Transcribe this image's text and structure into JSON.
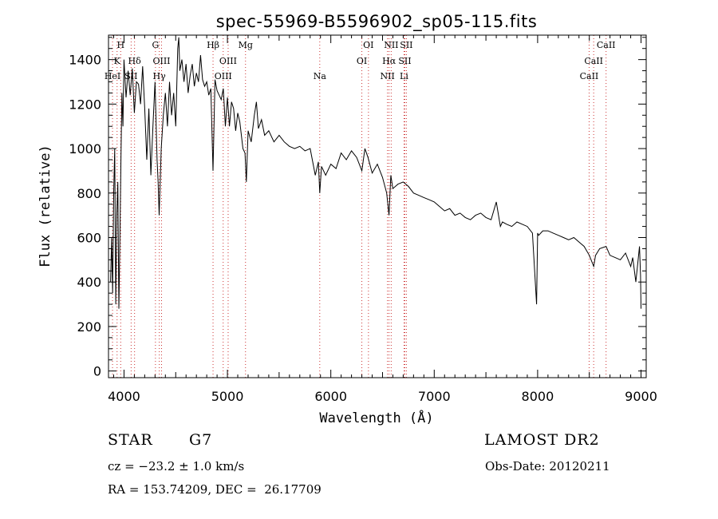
{
  "chart_data": {
    "type": "line",
    "title": "spec-55969-B5596902_sp05-115.fits",
    "xlabel": "Wavelength (Å)",
    "ylabel": "Flux (relative)",
    "xlim": [
      3850,
      9050
    ],
    "ylim": [
      -30,
      1510
    ],
    "xticks": [
      4000,
      5000,
      6000,
      7000,
      8000,
      9000
    ],
    "yticks": [
      0,
      200,
      400,
      600,
      800,
      1000,
      1200,
      1400
    ],
    "grid": false,
    "line_color": "#000000",
    "marker_color": "#cc3333",
    "series": [
      {
        "x": [
          3870,
          3880,
          3890,
          3900,
          3910,
          3920,
          3930,
          3940,
          3950,
          3960,
          3970,
          3980,
          3990,
          4000,
          4020,
          4040,
          4060,
          4080,
          4100,
          4120,
          4140,
          4160,
          4180,
          4200,
          4220,
          4240,
          4260,
          4280,
          4300,
          4320,
          4330,
          4340,
          4360,
          4380,
          4400,
          4420,
          4440,
          4460,
          4480,
          4500,
          4520,
          4530,
          4540,
          4560,
          4580,
          4600,
          4620,
          4640,
          4660,
          4680,
          4700,
          4720,
          4740,
          4760,
          4780,
          4800,
          4820,
          4840,
          4861,
          4880,
          4900,
          4920,
          4940,
          4960,
          4980,
          5000,
          5020,
          5040,
          5060,
          5080,
          5100,
          5120,
          5150,
          5170,
          5183,
          5200,
          5230,
          5260,
          5280,
          5300,
          5330,
          5360,
          5400,
          5450,
          5500,
          5550,
          5600,
          5650,
          5700,
          5750,
          5800,
          5850,
          5880,
          5893,
          5910,
          5950,
          6000,
          6050,
          6100,
          6150,
          6200,
          6250,
          6300,
          6330,
          6360,
          6400,
          6450,
          6500,
          6540,
          6563,
          6580,
          6600,
          6650,
          6700,
          6750,
          6800,
          6850,
          6900,
          6950,
          7000,
          7050,
          7100,
          7150,
          7200,
          7250,
          7300,
          7350,
          7400,
          7450,
          7500,
          7550,
          7600,
          7640,
          7660,
          7700,
          7750,
          7800,
          7850,
          7900,
          7950,
          7990,
          8000,
          8010,
          8050,
          8100,
          8150,
          8200,
          8250,
          8300,
          8350,
          8400,
          8450,
          8500,
          8542,
          8560,
          8600,
          8662,
          8700,
          8750,
          8800,
          8850,
          8900,
          8920,
          8950,
          8970,
          8985,
          8995,
          9000
        ],
        "values": [
          400,
          600,
          350,
          800,
          1000,
          300,
          700,
          850,
          280,
          600,
          950,
          1250,
          1100,
          1400,
          1230,
          1350,
          1240,
          1360,
          1160,
          1300,
          1290,
          1200,
          1370,
          1180,
          950,
          1180,
          880,
          1100,
          1300,
          950,
          850,
          700,
          1000,
          1150,
          1250,
          1100,
          1300,
          1150,
          1250,
          1100,
          1450,
          1500,
          1350,
          1400,
          1300,
          1380,
          1250,
          1330,
          1380,
          1280,
          1340,
          1300,
          1420,
          1310,
          1280,
          1300,
          1240,
          1270,
          900,
          1310,
          1260,
          1240,
          1220,
          1270,
          1100,
          1230,
          1100,
          1210,
          1180,
          1080,
          1160,
          1120,
          1000,
          980,
          850,
          1080,
          1030,
          1150,
          1210,
          1090,
          1130,
          1060,
          1080,
          1030,
          1060,
          1030,
          1010,
          1000,
          1010,
          990,
          1000,
          880,
          940,
          800,
          920,
          880,
          930,
          910,
          980,
          950,
          990,
          960,
          900,
          1000,
          960,
          890,
          930,
          870,
          800,
          700,
          880,
          820,
          840,
          850,
          830,
          800,
          790,
          780,
          770,
          760,
          740,
          720,
          730,
          700,
          710,
          690,
          680,
          700,
          710,
          690,
          680,
          760,
          650,
          670,
          660,
          650,
          670,
          660,
          650,
          620,
          300,
          620,
          610,
          630,
          630,
          620,
          610,
          600,
          590,
          600,
          580,
          560,
          520,
          470,
          520,
          550,
          560,
          520,
          510,
          500,
          530,
          470,
          510,
          400,
          490,
          560,
          430,
          280
        ]
      }
    ],
    "line_markers": [
      {
        "x": 3889,
        "label": "HeI"
      },
      {
        "x": 3933,
        "label": "K"
      },
      {
        "x": 3968,
        "label": "H"
      },
      {
        "x": 4069,
        "label": "SII"
      },
      {
        "x": 4102,
        "label": "Hδ"
      },
      {
        "x": 4304,
        "label": "G"
      },
      {
        "x": 4341,
        "label": "Hγ"
      },
      {
        "x": 4363,
        "label": "OIII"
      },
      {
        "x": 4861,
        "label": "Hβ"
      },
      {
        "x": 4959,
        "label": "OIII"
      },
      {
        "x": 5007,
        "label": "OIII"
      },
      {
        "x": 5175,
        "label": "Mg"
      },
      {
        "x": 5893,
        "label": "Na"
      },
      {
        "x": 6300,
        "label": "OI"
      },
      {
        "x": 6364,
        "label": "OI"
      },
      {
        "x": 6548,
        "label": "NII"
      },
      {
        "x": 6563,
        "label": "Hα"
      },
      {
        "x": 6584,
        "label": "NII"
      },
      {
        "x": 6708,
        "label": "Li"
      },
      {
        "x": 6716,
        "label": "SII"
      },
      {
        "x": 6731,
        "label": "SII"
      },
      {
        "x": 8498,
        "label": "CaII"
      },
      {
        "x": 8542,
        "label": "CaII"
      },
      {
        "x": 8662,
        "label": "CaII"
      }
    ]
  },
  "info": {
    "object_class": "STAR",
    "subclass": "G7",
    "survey": "LAMOST DR2",
    "cz": "cz = −23.2 ± 1.0 km/s",
    "obs_date": "Obs-Date: 20120211",
    "coords": "RA = 153.74209, DEC =  26.17709"
  }
}
